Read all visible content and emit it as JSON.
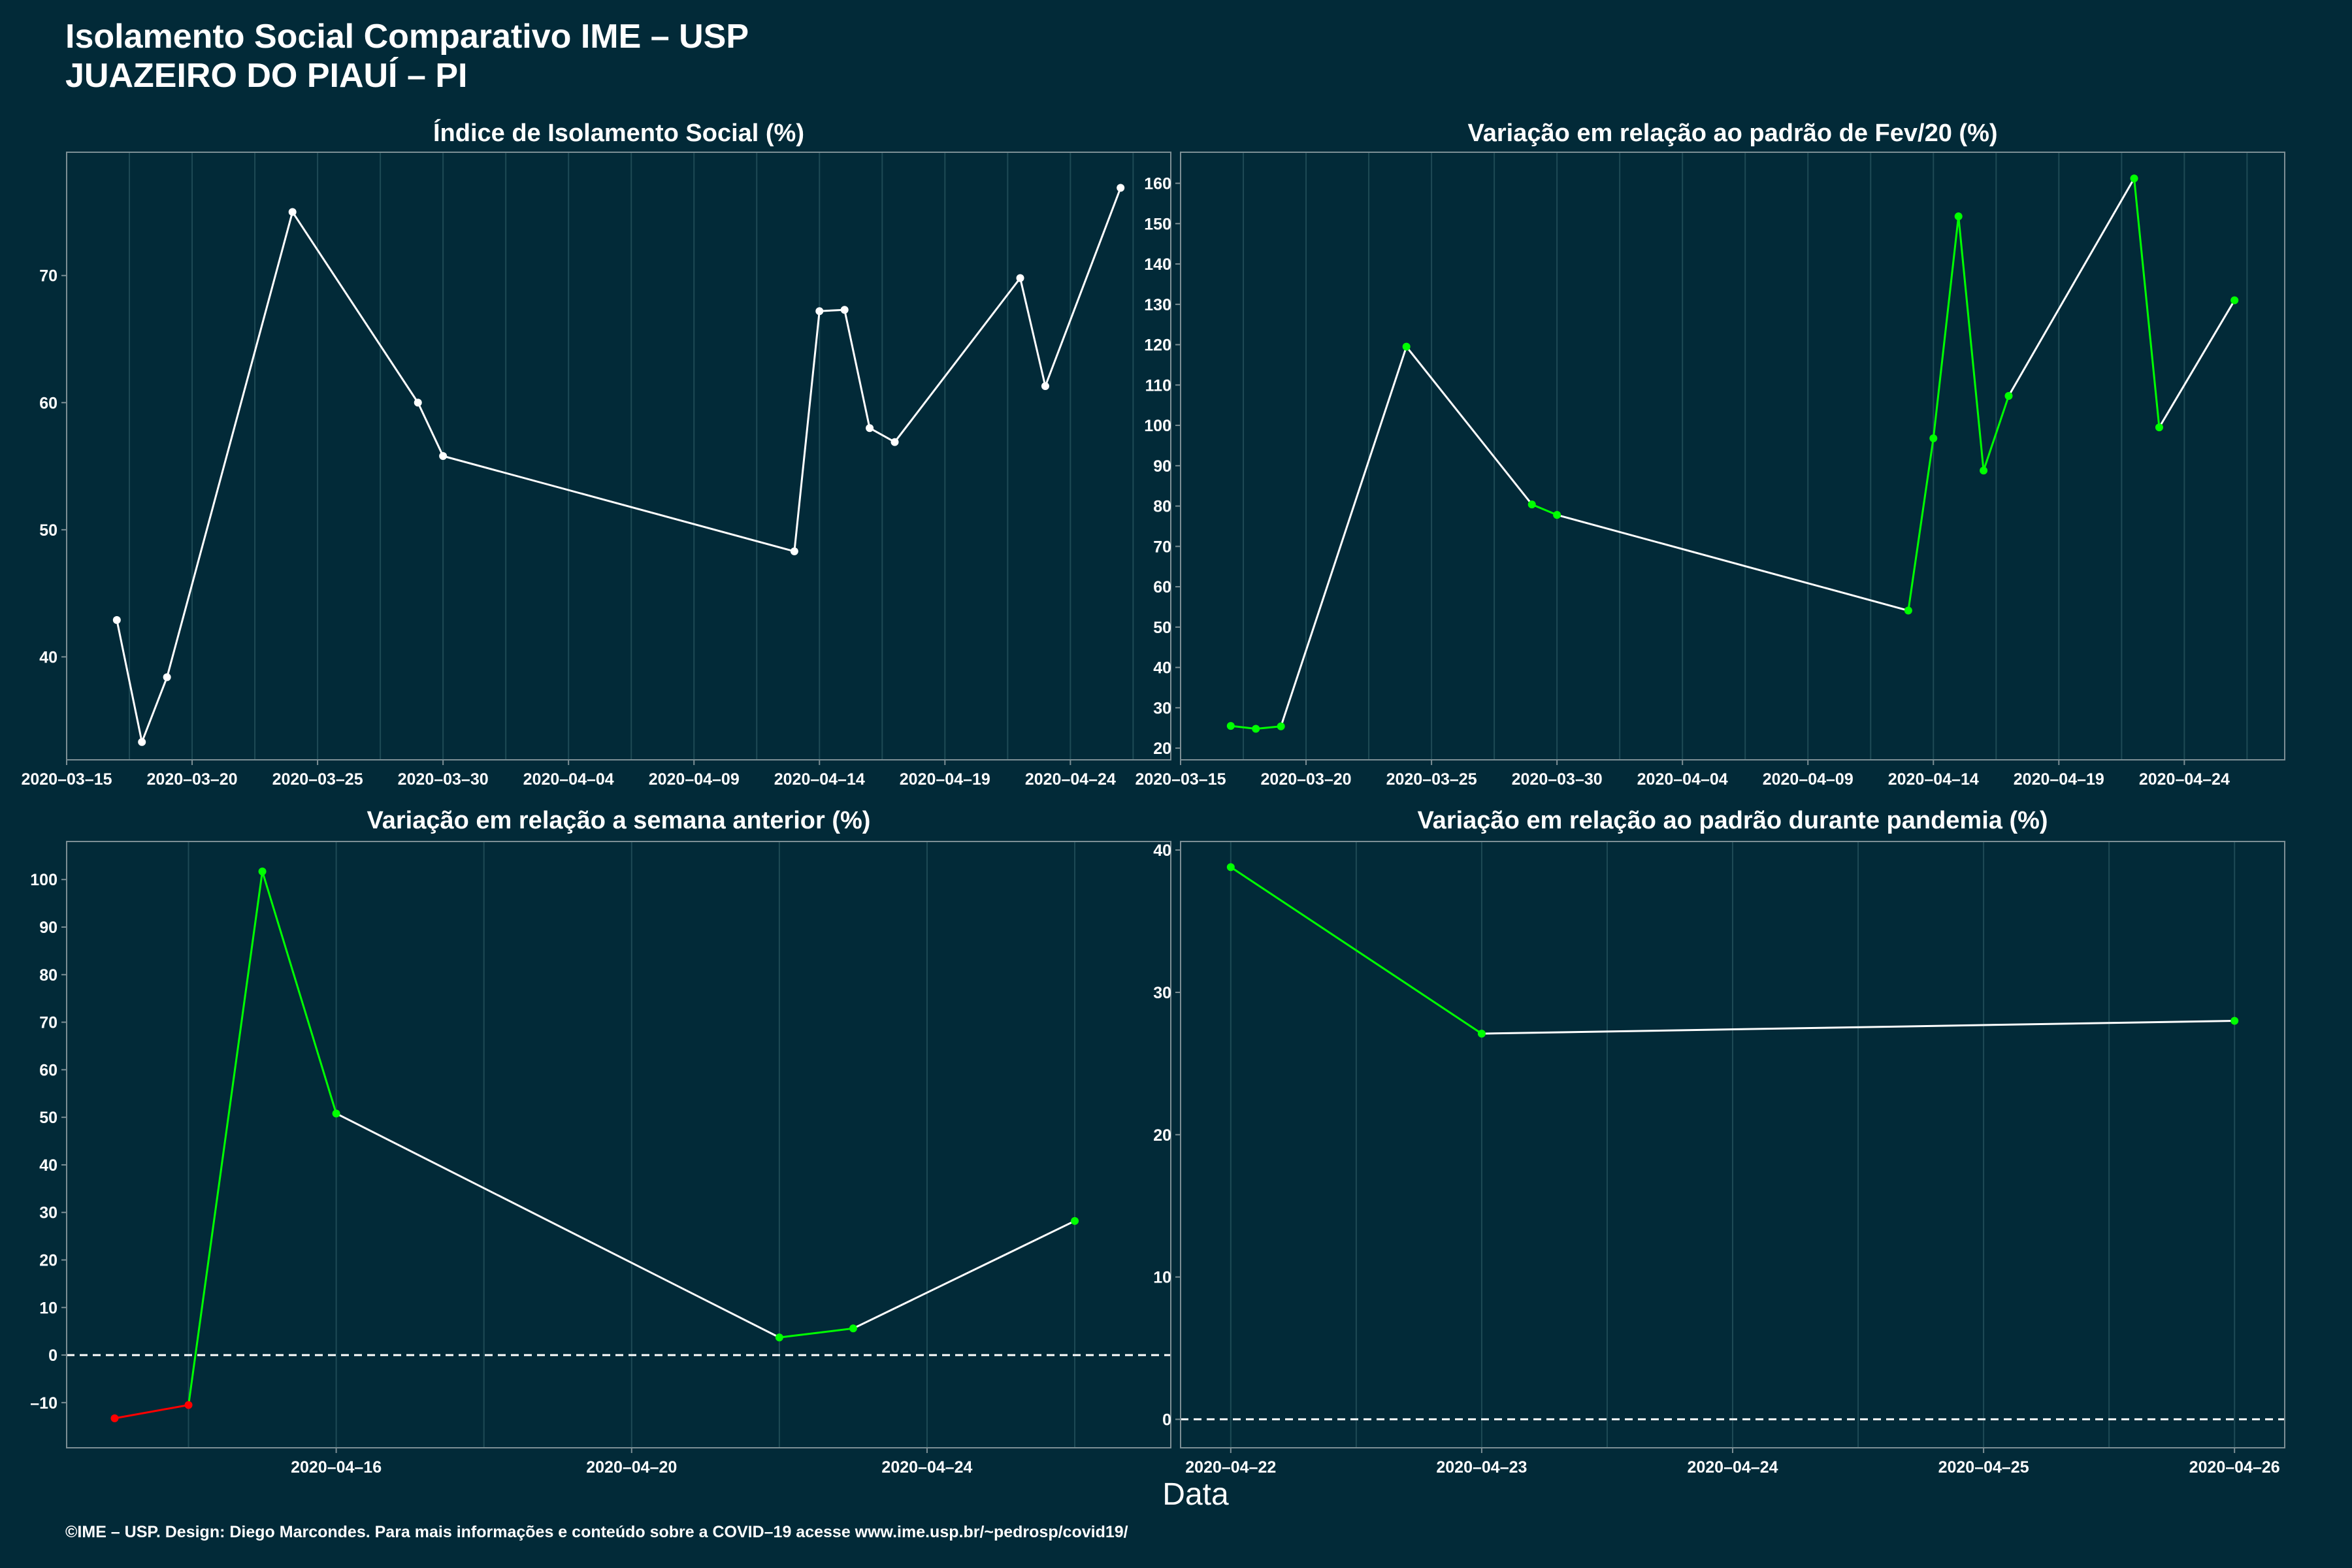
{
  "header": {
    "title_line1": "Isolamento Social Comparativo IME – USP",
    "title_line2": "JUAZEIRO DO PIAUÍ – PI"
  },
  "x_axis_title": "Data",
  "footer": "©IME – USP. Design: Diego Marcondes. Para mais informações e conteúdo sobre a COVID–19 acesse www.ime.usp.br/~pedrosp/covid19/",
  "colors": {
    "background": "#022a38",
    "panel_border": "#7d8f95",
    "gridline": "#1e4a55",
    "white_segment": "#ffffff",
    "increase": "#00ff00",
    "decrease": "#ff0000"
  },
  "chart_data": [
    {
      "type": "line",
      "title": "Índice de Isolamento Social (%)",
      "xlim": [
        "2020-03-15",
        "2020-04-28"
      ],
      "x_ticks": [
        "2020-03-15",
        "2020-03-20",
        "2020-03-25",
        "2020-03-30",
        "2020-04-04",
        "2020-04-09",
        "2020-04-14",
        "2020-04-19",
        "2020-04-24"
      ],
      "x_tick_labels": [
        "2020–03–15",
        "2020–03–20",
        "2020–03–25",
        "2020–03–30",
        "2020–04–04",
        "2020–04–09",
        "2020–04–14",
        "2020–04–19",
        "2020–04–24"
      ],
      "ylim": [
        31.9,
        79.7
      ],
      "y_ticks": [
        40,
        50,
        60,
        70
      ],
      "x": [
        "2020-03-17",
        "2020-03-18",
        "2020-03-19",
        "2020-03-24",
        "2020-03-29",
        "2020-03-30",
        "2020-04-13",
        "2020-04-14",
        "2020-04-15",
        "2020-04-16",
        "2020-04-17",
        "2020-04-22",
        "2020-04-23",
        "2020-04-26"
      ],
      "y": [
        42.9,
        33.3,
        38.4,
        75.0,
        60.0,
        55.8,
        48.3,
        67.2,
        67.3,
        58.0,
        56.9,
        69.8,
        61.3,
        76.9
      ],
      "segment_colors": [
        "white",
        "white",
        "white",
        "white",
        "white",
        "white",
        "white",
        "white",
        "white",
        "white",
        "white",
        "white",
        "white"
      ],
      "point_colors": [
        "white",
        "white",
        "white",
        "white",
        "white",
        "white",
        "white",
        "white",
        "white",
        "white",
        "white",
        "white",
        "white",
        "white"
      ],
      "grid": true
    },
    {
      "type": "line",
      "title": "Variação em relação ao padrão de Fev/20 (%)",
      "xlim": [
        "2020-03-15",
        "2020-04-28"
      ],
      "x_ticks": [
        "2020-03-15",
        "2020-03-20",
        "2020-03-25",
        "2020-03-30",
        "2020-04-04",
        "2020-04-09",
        "2020-04-14",
        "2020-04-19",
        "2020-04-24"
      ],
      "x_tick_labels": [
        "2020–03–15",
        "2020–03–20",
        "2020–03–25",
        "2020–03–30",
        "2020–04–04",
        "2020–04–09",
        "2020–04–14",
        "2020–04–19",
        "2020–04–24"
      ],
      "ylim": [
        17.1,
        167.7
      ],
      "y_ticks": [
        20,
        30,
        40,
        50,
        60,
        70,
        80,
        90,
        100,
        110,
        120,
        130,
        140,
        150,
        160
      ],
      "x": [
        "2020-03-17",
        "2020-03-18",
        "2020-03-19",
        "2020-03-24",
        "2020-03-29",
        "2020-03-30",
        "2020-04-13",
        "2020-04-14",
        "2020-04-15",
        "2020-04-16",
        "2020-04-17",
        "2020-04-22",
        "2020-04-23",
        "2020-04-26"
      ],
      "y": [
        25.5,
        24.8,
        25.4,
        119.5,
        80.4,
        77.8,
        54.1,
        96.8,
        151.8,
        88.8,
        107.3,
        161.2,
        99.5,
        131.0
      ],
      "segment_colors": [
        "green",
        "green",
        "white",
        "white",
        "green",
        "white",
        "green",
        "green",
        "green",
        "green",
        "white",
        "green",
        "white"
      ],
      "point_colors": [
        "green",
        "green",
        "green",
        "green",
        "green",
        "green",
        "green",
        "green",
        "green",
        "green",
        "green",
        "green",
        "green",
        "green"
      ],
      "grid": true
    },
    {
      "type": "line",
      "title": "Variação em relação a semana anterior (%)",
      "xlim": [
        "2020-04-12.35",
        "2020-04-27.3"
      ],
      "x_ticks": [
        "2020-04-16",
        "2020-04-20",
        "2020-04-24"
      ],
      "x_tick_labels": [
        "2020–04–16",
        "2020–04–20",
        "2020–04–24"
      ],
      "ylim": [
        -19.5,
        108.0
      ],
      "y_ticks": [
        -10,
        0,
        10,
        20,
        30,
        40,
        50,
        60,
        70,
        80,
        90,
        100
      ],
      "reference_line": 0,
      "x": [
        "2020-04-13",
        "2020-04-14",
        "2020-04-15",
        "2020-04-16",
        "2020-04-22",
        "2020-04-23",
        "2020-04-26"
      ],
      "y": [
        -13.3,
        -10.5,
        101.7,
        50.8,
        3.7,
        5.6,
        28.2
      ],
      "segment_colors": [
        "red",
        "green",
        "green",
        "white",
        "green",
        "white"
      ],
      "point_colors": [
        "red",
        "red",
        "green",
        "green",
        "green",
        "green",
        "green"
      ],
      "grid": true
    },
    {
      "type": "line",
      "title": "Variação em relação ao padrão durante pandemia (%)",
      "xlim": [
        "2020-04-21.8",
        "2020-04-26.2"
      ],
      "x_ticks": [
        "2020-04-22",
        "2020-04-23",
        "2020-04-24",
        "2020-04-25",
        "2020-04-26"
      ],
      "x_tick_labels": [
        "2020–04–22",
        "2020–04–23",
        "2020–04–24",
        "2020–04–25",
        "2020–04–26"
      ],
      "ylim": [
        -2.0,
        40.6
      ],
      "y_ticks": [
        0,
        10,
        20,
        30,
        40
      ],
      "reference_line": 0,
      "x": [
        "2020-04-22",
        "2020-04-23",
        "2020-04-26"
      ],
      "y": [
        38.8,
        27.1,
        28.0
      ],
      "segment_colors": [
        "green",
        "white"
      ],
      "point_colors": [
        "green",
        "green",
        "green"
      ],
      "grid": true
    }
  ]
}
